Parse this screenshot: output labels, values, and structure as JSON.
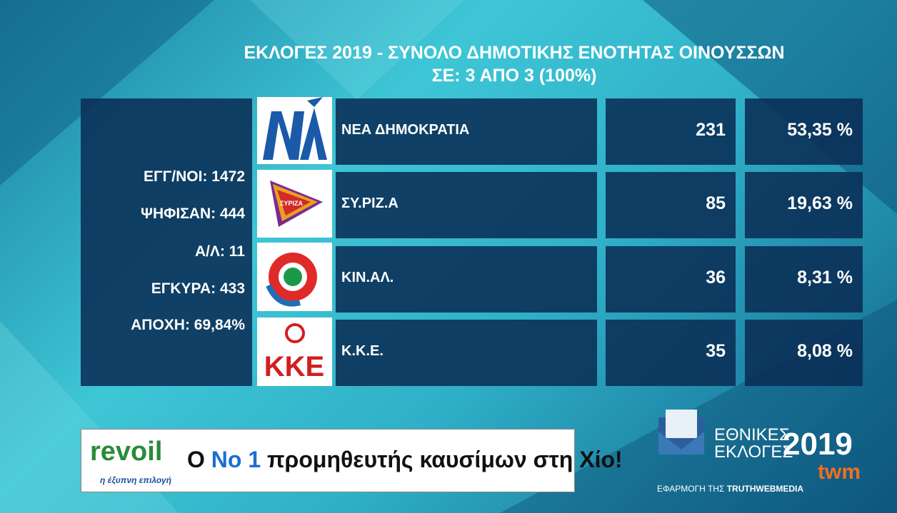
{
  "header": {
    "title": "ΕΚΛΟΓΕΣ 2019 - ΣΥΝΟΛΟ ΔΗΜΟΤΙΚΗΣ ΕΝΟΤΗΤΑΣ ΟΙΝΟΥΣΣΩΝ",
    "subtitle": "ΣΕ: 3 ΑΠΟ 3 (100%)"
  },
  "stats": [
    "ΕΓΓ/ΝΟΙ: 1472",
    "ΨΗΦΙΣΑΝ: 444",
    "Α/Λ: 11",
    "ΕΓΚΥΡΑ: 433",
    "ΑΠΟΧΗ: 69,84%"
  ],
  "parties": [
    {
      "name": "ΝΕΑ ΔΗΜΟΚΡΑΤΙΑ",
      "votes": "231",
      "percent": "53,35 %"
    },
    {
      "name": "ΣΥ.ΡΙΖ.Α",
      "votes": "85",
      "percent": "19,63 %",
      "logo_text": "ΣΥΡΙΖΑ"
    },
    {
      "name": "ΚΙΝ.ΑΛ.",
      "votes": "36",
      "percent": "8,31 %"
    },
    {
      "name": "Κ.Κ.Ε.",
      "votes": "35",
      "percent": "8,08 %",
      "logo_text": "ΚΚΕ"
    }
  ],
  "ad": {
    "brand": "revoil",
    "tagline": "η έξυπνη επιλογή",
    "slogan_start": "Ο ",
    "slogan_highlight": "No 1",
    "slogan_end": " προμηθευτής καυσίμων στη Χίο!"
  },
  "branding": {
    "line1": "ΕΘΝΙΚΕΣ",
    "line2": "ΕΚΛΟΓΕΣ",
    "year": "2019",
    "credit_prefix": "ΕΦΑΡΜΟΓΗ ΤΗΣ ",
    "credit_name": "TRUTHWEBMEDIA",
    "logo": "twm"
  }
}
